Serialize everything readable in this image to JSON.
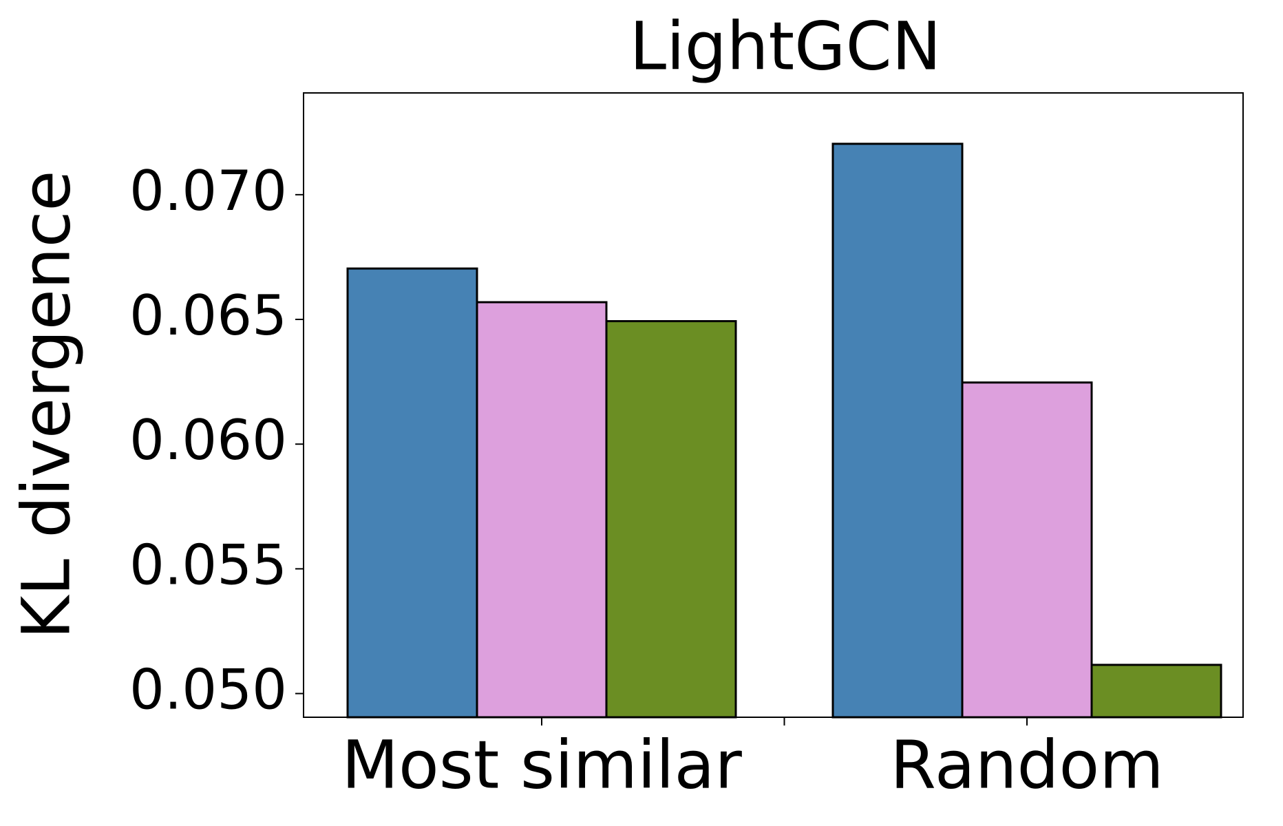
{
  "chart_data": {
    "type": "bar",
    "title": "LightGCN",
    "y_label": "KL divergence",
    "categories": [
      "Most similar",
      null,
      "Random"
    ],
    "series": [
      {
        "color": "#4682b4",
        "values": [
          0.06704,
          null,
          0.07204
        ]
      },
      {
        "color": "#dda0dd",
        "values": [
          0.06569,
          null,
          0.06247
        ]
      },
      {
        "color": "#6b8e23",
        "values": [
          0.06493,
          null,
          0.05115
        ]
      }
    ],
    "ylim": [
      0.04905,
      0.07408
    ],
    "yticks": [
      {
        "value": 0.05,
        "label": "0.050"
      },
      0.055,
      {
        "value": 0.06,
        "label": "0.060"
      },
      0.065,
      {
        "value": 0.07,
        "label": "0.070"
      }
    ]
  }
}
